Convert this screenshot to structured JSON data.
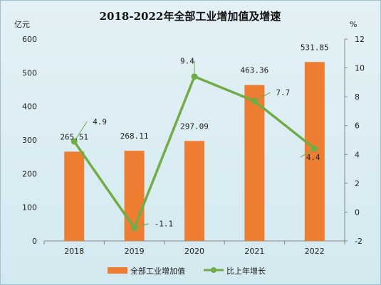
{
  "chart_data": {
    "type": "bar+line",
    "title": "2018-2022年全部工业增加值及增速",
    "y_left_unit": "亿元",
    "y_right_unit": "%",
    "categories": [
      "2018",
      "2019",
      "2020",
      "2021",
      "2022"
    ],
    "y_left_ticks": [
      "0",
      "100",
      "200",
      "300",
      "400",
      "500",
      "600"
    ],
    "y_right_ticks": [
      "-2",
      "0",
      "2",
      "4",
      "6",
      "8",
      "10",
      "12"
    ],
    "y_left_range": [
      0,
      600
    ],
    "y_right_range": [
      -2,
      12
    ],
    "series": [
      {
        "name": "全部工业增加值",
        "type": "bar",
        "axis": "left",
        "color": "#ed7d31",
        "values": [
          265.51,
          268.11,
          297.09,
          463.36,
          531.85
        ],
        "labels": [
          "265.51",
          "268.11",
          "297.09",
          "463.36",
          "531.85"
        ]
      },
      {
        "name": "比上年增长",
        "type": "line",
        "axis": "right",
        "color": "#70ad47",
        "values": [
          4.9,
          -1.1,
          9.4,
          7.7,
          4.4
        ],
        "labels": [
          "4.9",
          "-1.1",
          "9.4",
          "7.7",
          "4.4"
        ]
      }
    ],
    "grid": false,
    "legend_position": "bottom"
  }
}
